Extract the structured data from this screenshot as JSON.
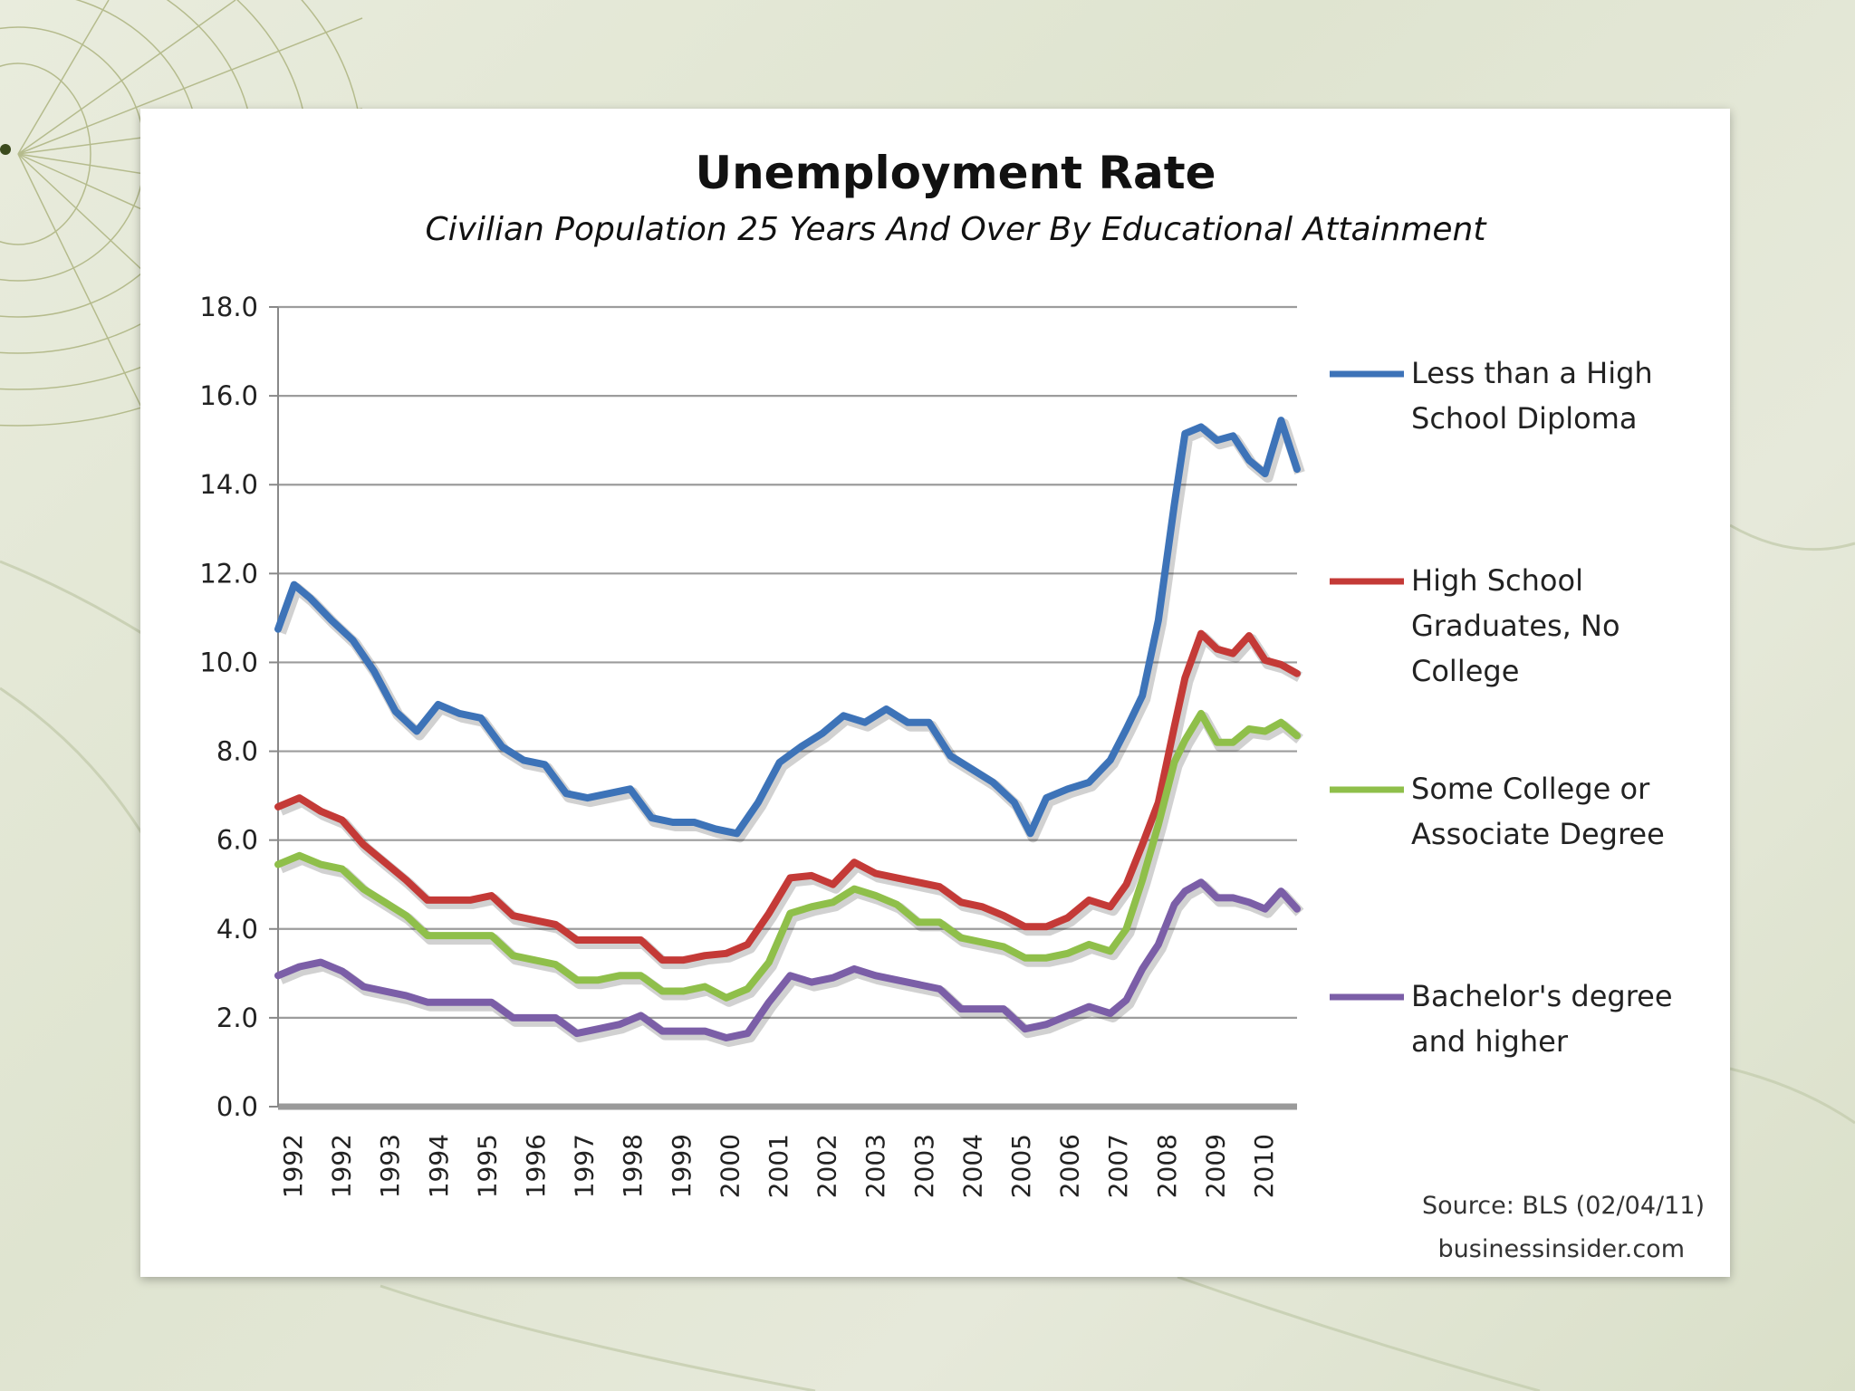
{
  "chart_data": {
    "type": "line",
    "title": "Unemployment Rate",
    "subtitle": "Civilian Population 25 Years And Over By Educational Attainment",
    "xlabel": "",
    "ylabel": "",
    "ylim": [
      0,
      18
    ],
    "yticks": [
      "0.0",
      "2.0",
      "4.0",
      "6.0",
      "8.0",
      "10.0",
      "12.0",
      "14.0",
      "16.0",
      "18.0"
    ],
    "xticks": [
      "1992",
      "1992",
      "1993",
      "1994",
      "1995",
      "1996",
      "1997",
      "1998",
      "1999",
      "2000",
      "2001",
      "2002",
      "2003",
      "2003",
      "2004",
      "2005",
      "2006",
      "2007",
      "2008",
      "2009",
      "2010"
    ],
    "x_range": [
      1992.0,
      2011.1
    ],
    "grid": true,
    "legend_position": "right",
    "series": [
      {
        "name": "Less than a High School Diploma",
        "color": "#3d73b8",
        "points": [
          [
            1992.0,
            10.9
          ],
          [
            1992.3,
            11.8
          ],
          [
            1992.6,
            11.4
          ],
          [
            1993.0,
            10.8
          ],
          [
            1993.4,
            10.6
          ],
          [
            1993.8,
            9.8
          ],
          [
            1994.2,
            8.8
          ],
          [
            1994.6,
            8.6
          ],
          [
            1995.0,
            9.1
          ],
          [
            1995.4,
            8.8
          ],
          [
            1995.8,
            8.6
          ],
          [
            1996.2,
            8.2
          ],
          [
            1996.6,
            7.8
          ],
          [
            1997.0,
            7.6
          ],
          [
            1997.4,
            7.2
          ],
          [
            1997.8,
            7.0
          ],
          [
            1998.2,
            7.0
          ],
          [
            1998.6,
            7.0
          ],
          [
            1999.0,
            6.6
          ],
          [
            1999.4,
            6.4
          ],
          [
            1999.8,
            6.3
          ],
          [
            2000.2,
            6.4
          ],
          [
            2000.6,
            6.2
          ],
          [
            2001.0,
            6.8
          ],
          [
            2001.4,
            7.6
          ],
          [
            2001.8,
            8.2
          ],
          [
            2002.2,
            8.4
          ],
          [
            2002.6,
            8.7
          ],
          [
            2003.0,
            8.8
          ],
          [
            2003.4,
            9.0
          ],
          [
            2003.8,
            8.6
          ],
          [
            2004.2,
            8.5
          ],
          [
            2004.6,
            8.0
          ],
          [
            2005.0,
            7.6
          ],
          [
            2005.4,
            7.2
          ],
          [
            2005.8,
            7.0
          ],
          [
            2006.1,
            6.2
          ],
          [
            2006.4,
            6.9
          ],
          [
            2006.8,
            7.0
          ],
          [
            2007.2,
            7.4
          ],
          [
            2007.6,
            7.8
          ],
          [
            2007.9,
            8.4
          ],
          [
            2008.2,
            9.4
          ],
          [
            2008.5,
            11.0
          ],
          [
            2008.8,
            13.5
          ],
          [
            2009.0,
            15.0
          ],
          [
            2009.3,
            15.4
          ],
          [
            2009.6,
            15.0
          ],
          [
            2009.9,
            15.0
          ],
          [
            2010.2,
            14.7
          ],
          [
            2010.5,
            14.3
          ],
          [
            2010.8,
            15.4
          ],
          [
            2011.1,
            14.2
          ]
        ]
      },
      {
        "name": "High School Graduates, No College",
        "color": "#c43a37",
        "points": [
          [
            1992.0,
            6.9
          ],
          [
            1992.4,
            7.0
          ],
          [
            1992.8,
            6.6
          ],
          [
            1993.2,
            6.3
          ],
          [
            1993.6,
            6.0
          ],
          [
            1994.0,
            5.5
          ],
          [
            1994.4,
            5.0
          ],
          [
            1994.8,
            4.8
          ],
          [
            1995.2,
            4.7
          ],
          [
            1995.6,
            4.6
          ],
          [
            1996.0,
            4.6
          ],
          [
            1996.4,
            4.4
          ],
          [
            1996.8,
            4.2
          ],
          [
            1997.2,
            4.0
          ],
          [
            1997.6,
            3.9
          ],
          [
            1998.0,
            3.8
          ],
          [
            1998.4,
            3.7
          ],
          [
            1998.8,
            3.6
          ],
          [
            1999.2,
            3.4
          ],
          [
            1999.6,
            3.3
          ],
          [
            2000.0,
            3.3
          ],
          [
            2000.4,
            3.6
          ],
          [
            2000.8,
            3.7
          ],
          [
            2001.2,
            4.3
          ],
          [
            2001.6,
            5.0
          ],
          [
            2002.0,
            5.3
          ],
          [
            2002.4,
            5.0
          ],
          [
            2002.8,
            5.4
          ],
          [
            2003.2,
            5.4
          ],
          [
            2003.6,
            5.2
          ],
          [
            2004.0,
            5.0
          ],
          [
            2004.4,
            4.8
          ],
          [
            2004.8,
            4.7
          ],
          [
            2005.2,
            4.5
          ],
          [
            2005.6,
            4.2
          ],
          [
            2006.0,
            4.2
          ],
          [
            2006.4,
            4.1
          ],
          [
            2006.8,
            4.2
          ],
          [
            2007.2,
            4.5
          ],
          [
            2007.6,
            4.6
          ],
          [
            2007.9,
            5.0
          ],
          [
            2008.2,
            5.8
          ],
          [
            2008.5,
            7.0
          ],
          [
            2008.8,
            8.6
          ],
          [
            2009.0,
            9.6
          ],
          [
            2009.3,
            10.5
          ],
          [
            2009.6,
            10.4
          ],
          [
            2009.9,
            10.2
          ],
          [
            2010.2,
            10.5
          ],
          [
            2010.5,
            10.2
          ],
          [
            2010.8,
            10.0
          ],
          [
            2011.1,
            9.7
          ]
        ]
      },
      {
        "name": "Some College or Associate Degree",
        "color": "#8fbf4a",
        "points": [
          [
            1992.0,
            5.6
          ],
          [
            1992.4,
            5.7
          ],
          [
            1992.8,
            5.4
          ],
          [
            1993.2,
            5.2
          ],
          [
            1993.6,
            5.0
          ],
          [
            1994.0,
            4.6
          ],
          [
            1994.4,
            4.2
          ],
          [
            1994.8,
            4.0
          ],
          [
            1995.2,
            3.9
          ],
          [
            1995.6,
            3.8
          ],
          [
            1996.0,
            3.7
          ],
          [
            1996.4,
            3.5
          ],
          [
            1996.8,
            3.3
          ],
          [
            1997.2,
            3.1
          ],
          [
            1997.6,
            3.0
          ],
          [
            1998.0,
            2.9
          ],
          [
            1998.4,
            2.9
          ],
          [
            1998.8,
            2.8
          ],
          [
            1999.2,
            2.7
          ],
          [
            1999.6,
            2.6
          ],
          [
            2000.0,
            2.6
          ],
          [
            2000.4,
            2.6
          ],
          [
            2000.8,
            2.7
          ],
          [
            2001.2,
            3.2
          ],
          [
            2001.6,
            4.2
          ],
          [
            2002.0,
            4.6
          ],
          [
            2002.4,
            4.6
          ],
          [
            2002.8,
            4.8
          ],
          [
            2003.2,
            4.9
          ],
          [
            2003.6,
            4.6
          ],
          [
            2004.0,
            4.1
          ],
          [
            2004.4,
            4.0
          ],
          [
            2004.8,
            3.9
          ],
          [
            2005.2,
            3.7
          ],
          [
            2005.6,
            3.5
          ],
          [
            2006.0,
            3.5
          ],
          [
            2006.4,
            3.4
          ],
          [
            2006.8,
            3.4
          ],
          [
            2007.2,
            3.5
          ],
          [
            2007.6,
            3.6
          ],
          [
            2007.9,
            4.0
          ],
          [
            2008.2,
            5.0
          ],
          [
            2008.5,
            6.5
          ],
          [
            2008.8,
            7.8
          ],
          [
            2009.0,
            8.2
          ],
          [
            2009.3,
            8.7
          ],
          [
            2009.6,
            8.3
          ],
          [
            2009.9,
            8.2
          ],
          [
            2010.2,
            8.4
          ],
          [
            2010.5,
            8.6
          ],
          [
            2010.8,
            8.7
          ],
          [
            2011.1,
            8.3
          ]
        ]
      },
      {
        "name": "Bachelor's degree and higher",
        "color": "#7b5ea7",
        "points": [
          [
            1992.0,
            3.1
          ],
          [
            1992.4,
            3.2
          ],
          [
            1992.8,
            3.2
          ],
          [
            1993.2,
            2.9
          ],
          [
            1993.6,
            2.8
          ],
          [
            1994.0,
            2.6
          ],
          [
            1994.4,
            2.4
          ],
          [
            1994.8,
            2.5
          ],
          [
            1995.2,
            2.4
          ],
          [
            1995.6,
            2.3
          ],
          [
            1996.0,
            2.2
          ],
          [
            1996.4,
            2.1
          ],
          [
            1996.8,
            2.0
          ],
          [
            1997.2,
            1.9
          ],
          [
            1997.6,
            1.8
          ],
          [
            1998.0,
            1.8
          ],
          [
            1998.4,
            1.8
          ],
          [
            1998.8,
            1.9
          ],
          [
            1999.2,
            1.8
          ],
          [
            1999.6,
            1.7
          ],
          [
            2000.0,
            1.6
          ],
          [
            2000.4,
            1.7
          ],
          [
            2000.8,
            1.7
          ],
          [
            2001.2,
            2.3
          ],
          [
            2001.6,
            2.8
          ],
          [
            2002.0,
            2.9
          ],
          [
            2002.4,
            2.9
          ],
          [
            2002.8,
            3.0
          ],
          [
            2003.2,
            3.1
          ],
          [
            2003.6,
            2.9
          ],
          [
            2004.0,
            2.7
          ],
          [
            2004.4,
            2.5
          ],
          [
            2004.8,
            2.3
          ],
          [
            2005.2,
            2.2
          ],
          [
            2005.6,
            2.1
          ],
          [
            2006.0,
            1.9
          ],
          [
            2006.4,
            1.9
          ],
          [
            2006.8,
            2.0
          ],
          [
            2007.2,
            2.1
          ],
          [
            2007.6,
            2.2
          ],
          [
            2007.9,
            2.4
          ],
          [
            2008.2,
            3.0
          ],
          [
            2008.5,
            3.8
          ],
          [
            2008.8,
            4.6
          ],
          [
            2009.0,
            4.8
          ],
          [
            2009.3,
            4.9
          ],
          [
            2009.6,
            4.8
          ],
          [
            2009.9,
            4.7
          ],
          [
            2010.2,
            4.5
          ],
          [
            2010.5,
            4.6
          ],
          [
            2010.8,
            4.9
          ],
          [
            2011.1,
            4.4
          ]
        ]
      }
    ],
    "legend_lines": [
      [
        "Less than a High",
        "School Diploma"
      ],
      [
        "High School",
        "Graduates, No",
        "College"
      ],
      [
        "Some College or",
        "Associate Degree"
      ],
      [
        "Bachelor's degree",
        "and higher"
      ]
    ],
    "source_lines": [
      "Source: BLS (02/04/11)",
      "businessinsider.com"
    ]
  }
}
